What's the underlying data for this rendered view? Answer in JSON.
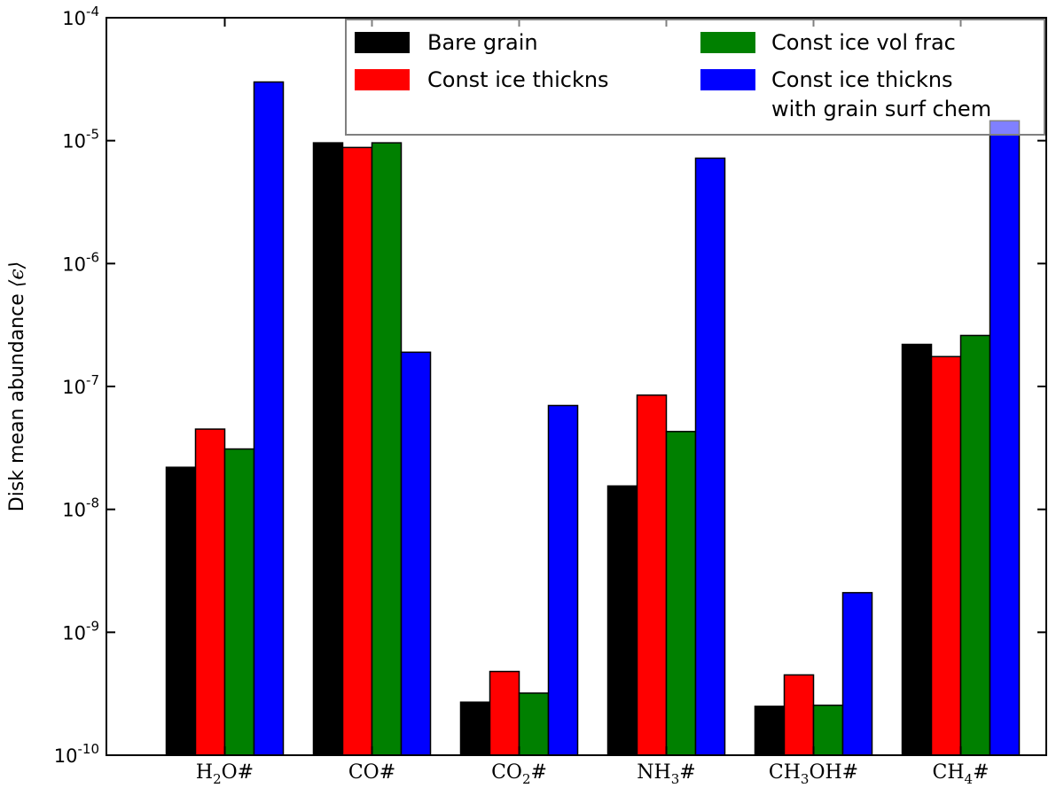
{
  "chart_data": {
    "type": "bar",
    "title": "",
    "xlabel": "",
    "ylabel": "Disk mean abundance",
    "ylabel_symbol": "⟨ϵ⟩",
    "yscale": "log",
    "ylim": [
      1e-10,
      0.0001
    ],
    "ytick_labels": [
      {
        "base": "10",
        "exp": "-10"
      },
      {
        "base": "10",
        "exp": "-9"
      },
      {
        "base": "10",
        "exp": "-8"
      },
      {
        "base": "10",
        "exp": "-7"
      },
      {
        "base": "10",
        "exp": "-6"
      },
      {
        "base": "10",
        "exp": "-5"
      },
      {
        "base": "10",
        "exp": "-4"
      }
    ],
    "categories": [
      {
        "main": "H",
        "sub": "2",
        "rest": "O#"
      },
      {
        "main": "CO#",
        "sub": "",
        "rest": ""
      },
      {
        "main": "CO",
        "sub": "2",
        "rest": "#"
      },
      {
        "main": "NH",
        "sub": "3",
        "rest": "#"
      },
      {
        "main": "CH",
        "sub": "3",
        "rest": "OH#"
      },
      {
        "main": "CH",
        "sub": "4",
        "rest": "#"
      }
    ],
    "series": [
      {
        "name": "Bare grain",
        "color": "#000000",
        "values": [
          2.2e-08,
          9.6e-06,
          2.7e-10,
          1.55e-08,
          2.5e-10,
          2.2e-07
        ]
      },
      {
        "name": "Const ice thickns",
        "color": "#ff0000",
        "values": [
          4.5e-08,
          8.8e-06,
          4.8e-10,
          8.5e-08,
          4.5e-10,
          1.75e-07
        ]
      },
      {
        "name": "Const ice vol frac",
        "color": "#008000",
        "values": [
          3.1e-08,
          9.6e-06,
          3.2e-10,
          4.3e-08,
          2.55e-10,
          2.6e-07
        ]
      },
      {
        "name": "Const ice thickns with grain surf chem",
        "color": "#0000ff",
        "legend_lines": [
          "Const ice thickns",
          "with grain surf chem"
        ],
        "values": [
          3e-05,
          1.9e-07,
          7e-08,
          7.2e-06,
          2.1e-09,
          1.45e-05
        ]
      }
    ],
    "legend_position": "upper-right",
    "grid": false
  }
}
